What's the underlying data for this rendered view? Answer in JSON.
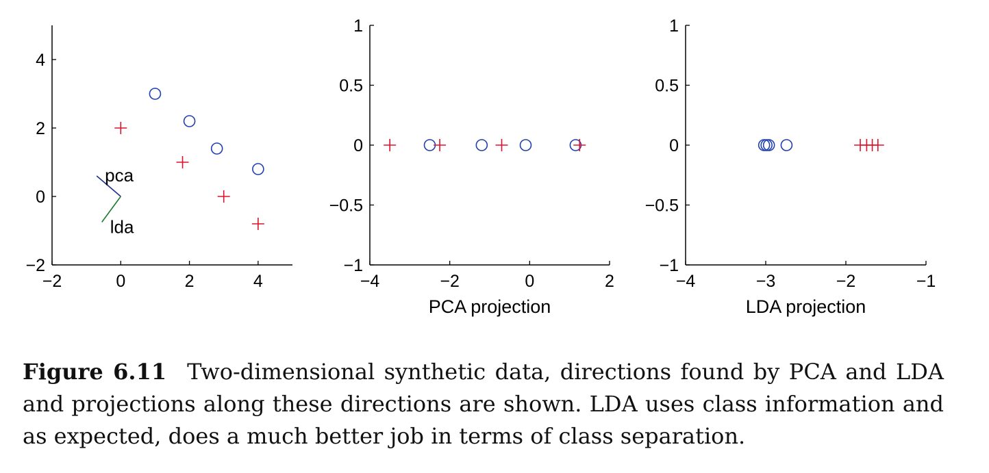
{
  "chart_data": [
    {
      "type": "scatter",
      "xlabel": "",
      "ylabel": "",
      "xlim": [
        -2,
        5
      ],
      "ylim": [
        -2,
        5
      ],
      "xticks": [
        -2,
        0,
        2,
        4
      ],
      "yticks": [
        -2,
        0,
        2,
        4
      ],
      "series": [
        {
          "marker": "circle",
          "color": "#1f3fb0",
          "x": [
            1.0,
            2.0,
            2.8,
            4.0
          ],
          "y": [
            3.0,
            2.2,
            1.4,
            0.8
          ]
        },
        {
          "marker": "plus",
          "color": "#e0102a",
          "x": [
            0.0,
            1.8,
            3.0,
            4.0
          ],
          "y": [
            2.0,
            1.0,
            0.0,
            -0.8
          ]
        }
      ],
      "directions": [
        {
          "label": "pca",
          "color": "#1a2f8a",
          "from": [
            0,
            0
          ],
          "to": [
            -0.7,
            0.6
          ]
        },
        {
          "label": "lda",
          "color": "#1b7a2e",
          "from": [
            0,
            0
          ],
          "to": [
            -0.55,
            -0.75
          ]
        }
      ]
    },
    {
      "type": "scatter",
      "xlabel": "PCA projection",
      "ylabel": "",
      "xlim": [
        -4,
        2
      ],
      "ylim": [
        -1,
        1
      ],
      "xticks": [
        -4,
        -2,
        0,
        2
      ],
      "yticks": [
        -1,
        -0.5,
        0,
        0.5,
        1
      ],
      "series": [
        {
          "marker": "circle",
          "color": "#1f3fb0",
          "x": [
            -2.5,
            -1.2,
            -0.1,
            1.15
          ],
          "y": [
            0,
            0,
            0,
            0
          ]
        },
        {
          "marker": "plus",
          "color": "#e0102a",
          "x": [
            -3.5,
            -2.25,
            -0.7,
            1.25
          ],
          "y": [
            0,
            0,
            0,
            0
          ]
        }
      ]
    },
    {
      "type": "scatter",
      "xlabel": "LDA projection",
      "ylabel": "",
      "xlim": [
        -4,
        -1
      ],
      "ylim": [
        -1,
        1
      ],
      "xticks": [
        -4,
        -3,
        -2,
        -1
      ],
      "yticks": [
        -1,
        -0.5,
        0,
        0.5,
        1
      ],
      "series": [
        {
          "marker": "circle",
          "color": "#1f3fb0",
          "x": [
            -3.02,
            -2.99,
            -2.96,
            -2.74
          ],
          "y": [
            0,
            0,
            0,
            0
          ]
        },
        {
          "marker": "plus",
          "color": "#e0102a",
          "x": [
            -1.82,
            -1.74,
            -1.67,
            -1.6
          ],
          "y": [
            0,
            0,
            0,
            0
          ]
        }
      ]
    }
  ],
  "caption": {
    "label": "Figure 6.11",
    "text": "Two-dimensional synthetic data, directions found by PCA and LDA and projections along these directions are shown. LDA uses class information and as expected, does a much better job in terms of class separation."
  }
}
